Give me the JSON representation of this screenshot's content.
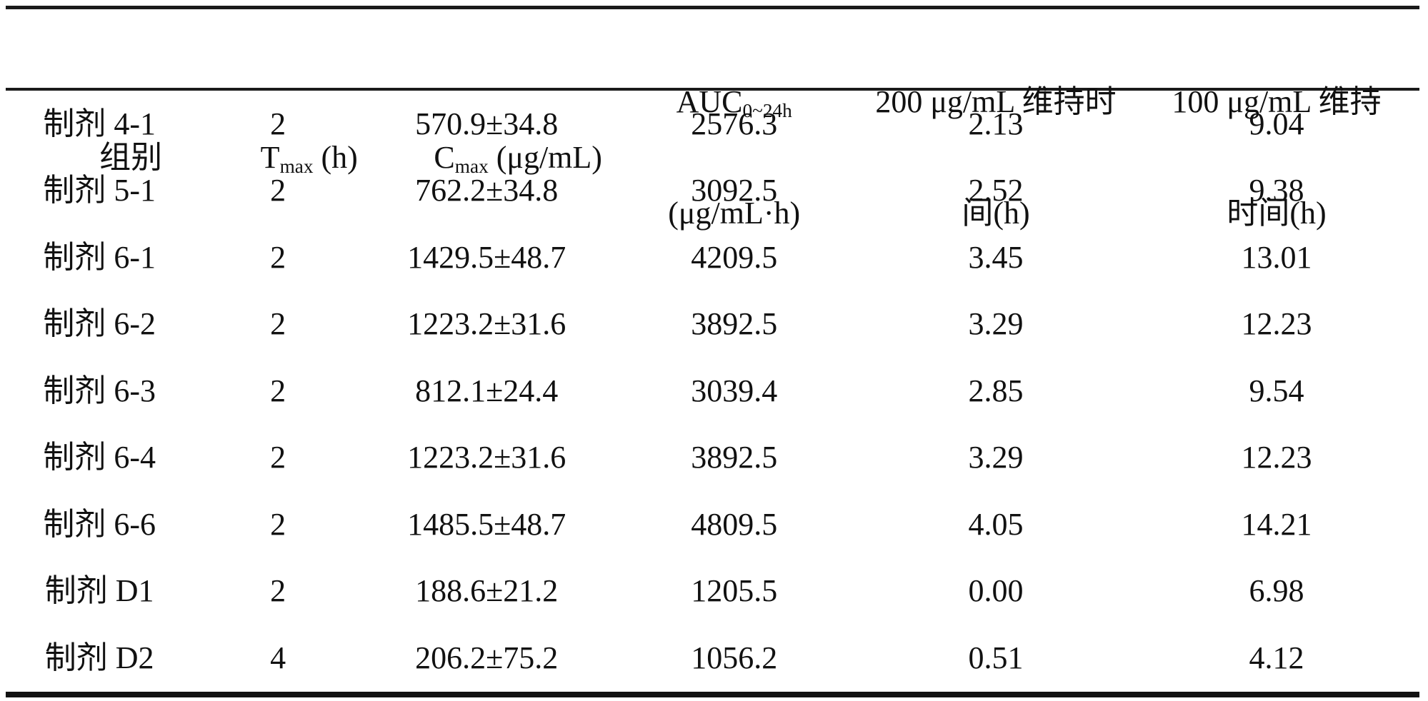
{
  "document": {
    "background": "#ffffff",
    "text_color": "#111111",
    "rule_color": "#1a1a1a"
  },
  "table": {
    "header": {
      "group": "组别",
      "tmax": {
        "base": "T",
        "sub": "max",
        "unit": " (h)"
      },
      "cmax": {
        "base": "C",
        "sub": "max",
        "unit": " (μg/mL)"
      },
      "auc": {
        "base": "AUC",
        "sub": "0~24h",
        "unit": "(μg/mL·h)"
      },
      "hold200": {
        "line1": "200 μg/mL 维持时",
        "line2": "间(h)"
      },
      "hold100": {
        "line1": "100 μg/mL 维持",
        "line2": "时间(h)"
      }
    },
    "rows": [
      {
        "group": "制剂 4-1",
        "tmax": "2",
        "cmax": "570.9±34.8",
        "auc": "2576.3",
        "hold200": "2.13",
        "hold100": "9.04"
      },
      {
        "group": "制剂 5-1",
        "tmax": "2",
        "cmax": "762.2±34.8",
        "auc": "3092.5",
        "hold200": "2.52",
        "hold100": "9.38"
      },
      {
        "group": "制剂 6-1",
        "tmax": "2",
        "cmax": "1429.5±48.7",
        "auc": "4209.5",
        "hold200": "3.45",
        "hold100": "13.01"
      },
      {
        "group": "制剂 6-2",
        "tmax": "2",
        "cmax": "1223.2±31.6",
        "auc": "3892.5",
        "hold200": "3.29",
        "hold100": "12.23"
      },
      {
        "group": "制剂 6-3",
        "tmax": "2",
        "cmax": "812.1±24.4",
        "auc": "3039.4",
        "hold200": "2.85",
        "hold100": "9.54"
      },
      {
        "group": "制剂 6-4",
        "tmax": "2",
        "cmax": "1223.2±31.6",
        "auc": "3892.5",
        "hold200": "3.29",
        "hold100": "12.23"
      },
      {
        "group": "制剂 6-6",
        "tmax": "2",
        "cmax": "1485.5±48.7",
        "auc": "4809.5",
        "hold200": "4.05",
        "hold100": "14.21"
      },
      {
        "group": "制剂 D1",
        "tmax": "2",
        "cmax": "188.6±21.2",
        "auc": "1205.5",
        "hold200": "0.00",
        "hold100": "6.98"
      },
      {
        "group": "制剂 D2",
        "tmax": "4",
        "cmax": "206.2±75.2",
        "auc": "1056.2",
        "hold200": "0.51",
        "hold100": "4.12"
      }
    ]
  }
}
